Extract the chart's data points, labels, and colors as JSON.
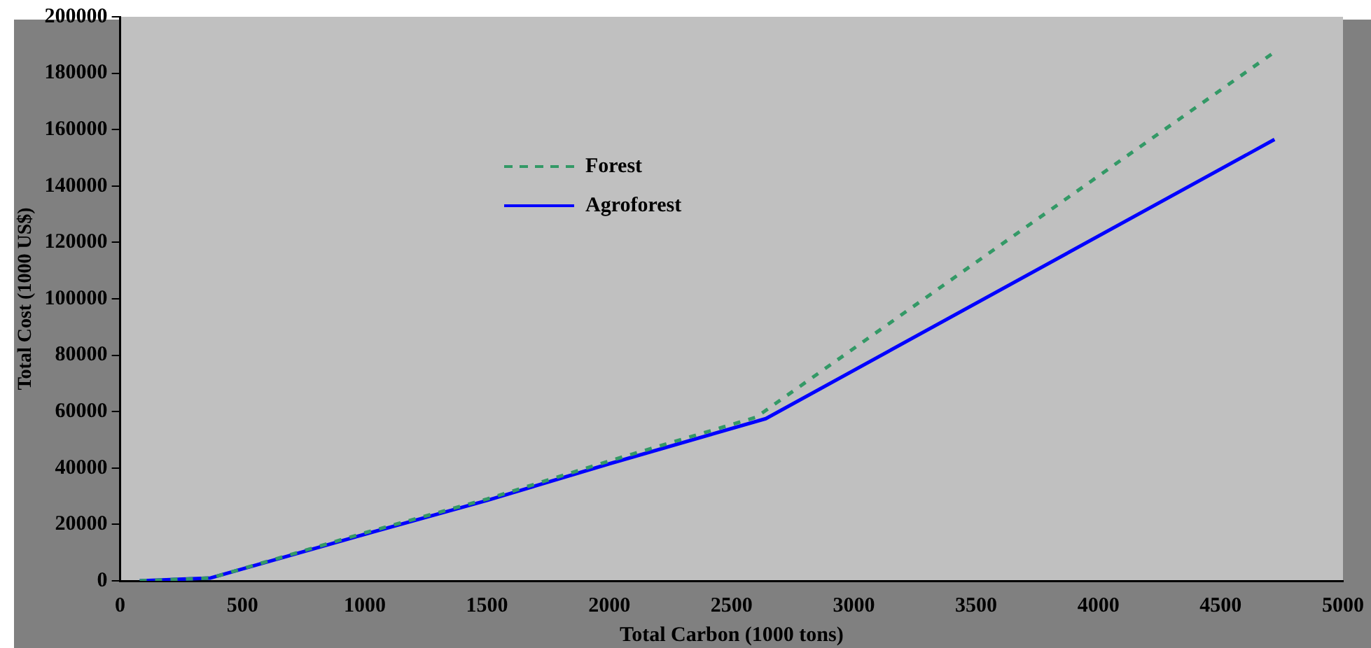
{
  "chart_data": {
    "type": "line",
    "xlabel": "Total Carbon (1000 tons)",
    "ylabel": "Total Cost (1000 US$)",
    "xlim": [
      0,
      5000
    ],
    "xticks": [
      0,
      500,
      1000,
      1500,
      2000,
      2500,
      3000,
      3500,
      4000,
      4500,
      5000
    ],
    "ylim": [
      0,
      200000
    ],
    "yticks": [
      0,
      20000,
      40000,
      60000,
      80000,
      100000,
      120000,
      140000,
      160000,
      180000,
      200000
    ],
    "grid": false,
    "legend": "top left",
    "marker": "none",
    "series": [
      {
        "name": "Forest",
        "color": "#339966",
        "line_style": "dashed",
        "x": [
          80,
          370,
          1000,
          1500,
          2000,
          2600,
          4720
        ],
        "values": [
          0,
          1000,
          17000,
          29000,
          42500,
          58000,
          187500
        ]
      },
      {
        "name": "Agroforest",
        "color": "#0000ff",
        "line_style": "solid",
        "x": [
          80,
          370,
          1000,
          1500,
          2000,
          2640,
          4720
        ],
        "values": [
          0,
          1000,
          16500,
          28500,
          41500,
          57500,
          156500
        ]
      }
    ]
  }
}
